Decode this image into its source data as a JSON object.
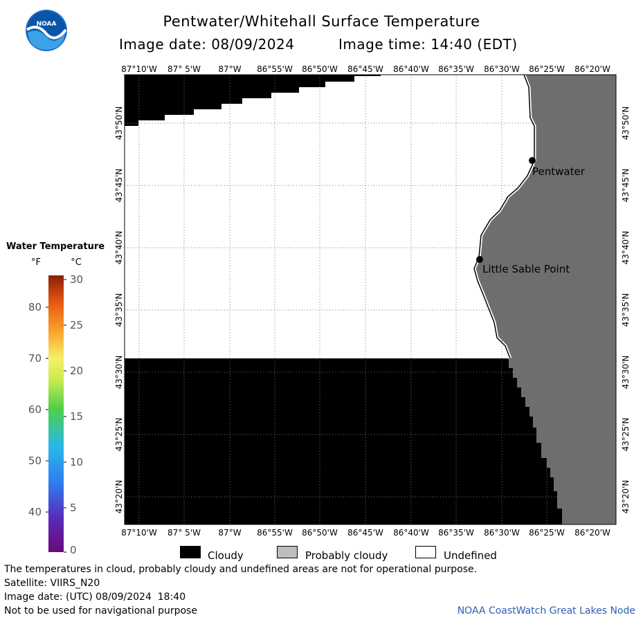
{
  "header": {
    "title": "Pentwater/Whitehall Surface Temperature",
    "image_date": "Image date: 08/09/2024",
    "image_time": "Image time: 14:40 (EDT)"
  },
  "logo": {
    "text": "NOAA"
  },
  "map": {
    "lon_ticks": [
      "87°10'W",
      "87° 5'W",
      "87°W",
      "86°55'W",
      "86°50'W",
      "86°45'W",
      "86°40'W",
      "86°35'W",
      "86°30'W",
      "86°25'W",
      "86°20'W"
    ],
    "lat_ticks": [
      "43°50'N",
      "43°45'N",
      "43°40'N",
      "43°35'N",
      "43°30'N",
      "43°25'N",
      "43°20'N"
    ],
    "places": [
      {
        "name": "Pentwater"
      },
      {
        "name": "Little Sable Point"
      }
    ],
    "colors": {
      "cloud": "#000000",
      "land": "#6e6e6e",
      "water_undefined": "#ffffff",
      "grid": "#888888"
    }
  },
  "colorbar": {
    "title": "Water Temperature",
    "unit_f": "°F",
    "unit_c": "°C",
    "f_ticks": [
      "80",
      "70",
      "60",
      "50",
      "40"
    ],
    "c_ticks": [
      "30",
      "25",
      "20",
      "15",
      "10",
      "5",
      "0"
    ]
  },
  "legend": {
    "items": [
      {
        "label": "Cloudy",
        "color": "#000000"
      },
      {
        "label": "Probably cloudy",
        "color": "#bdbdbd"
      },
      {
        "label": "Undefined",
        "color": "#ffffff"
      }
    ]
  },
  "footer": {
    "note": "The temperatures in cloud, probably cloudy and undefined areas are not for operational purpose.",
    "satellite": "Satellite: VIIRS_N20",
    "utc_date": "Image date: (UTC) 08/09/2024  18:40",
    "nav_warning": "Not to be used for navigational purpose",
    "credit": "NOAA CoastWatch Great Lakes Node"
  }
}
